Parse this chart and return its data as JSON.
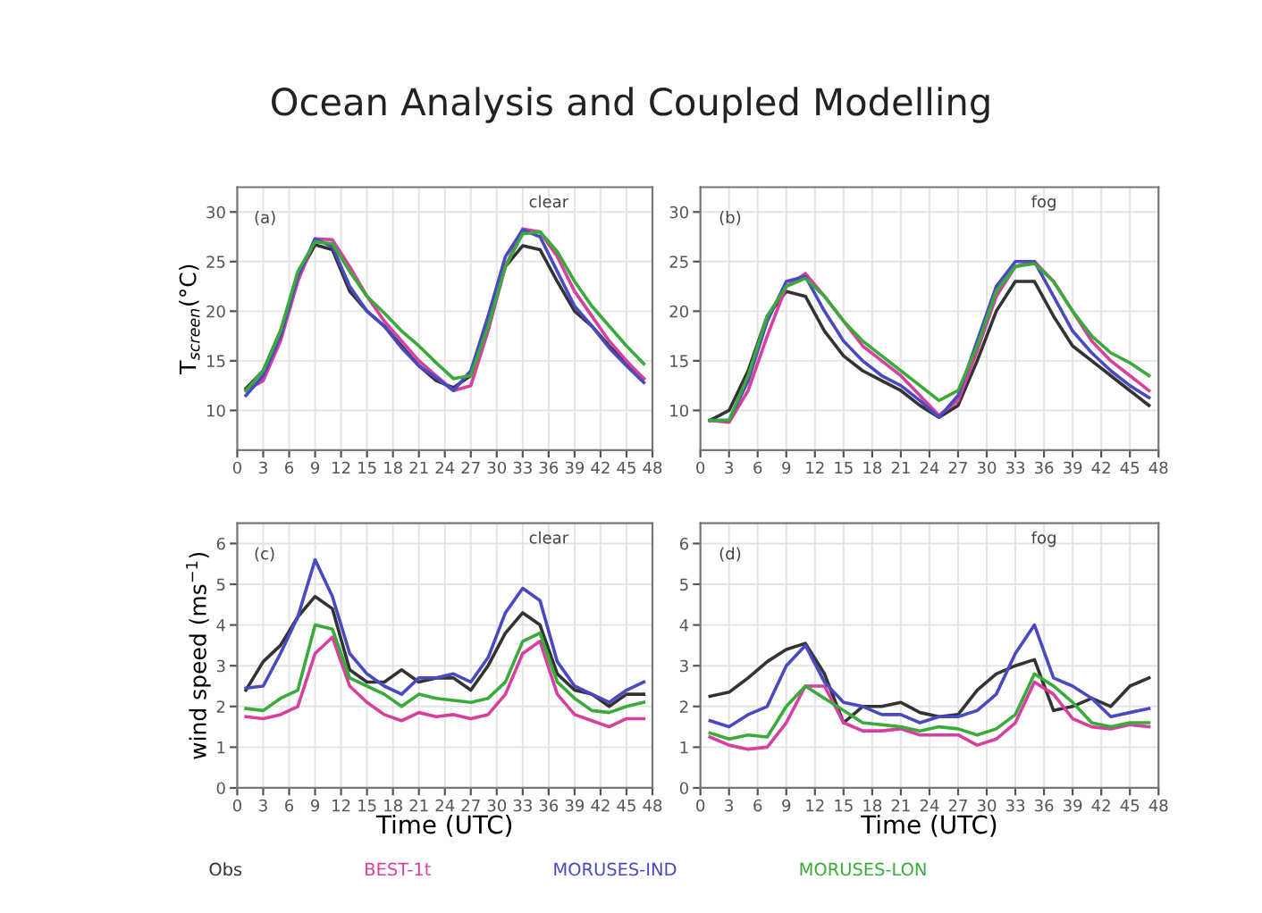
{
  "chart_data": [
    {
      "type": "line",
      "title": "Ocean Analysis and Coupled Modelling",
      "ylabel": "T$_{screen}$(°C)",
      "annotations": [
        "(a)",
        "clear"
      ],
      "x": [
        1,
        3,
        5,
        7,
        9,
        11,
        13,
        15,
        17,
        19,
        21,
        23,
        25,
        27,
        29,
        31,
        33,
        35,
        37,
        39,
        41,
        43,
        45,
        47
      ],
      "xlim": [
        0,
        48
      ],
      "xticks": [
        0,
        3,
        6,
        9,
        12,
        15,
        18,
        21,
        24,
        27,
        30,
        33,
        36,
        39,
        42,
        45,
        48
      ],
      "ylim": [
        6,
        32.5
      ],
      "yticks": [
        10,
        15,
        20,
        25,
        30
      ],
      "grid": true,
      "legend": "bottom",
      "series": [
        {
          "name": "Obs",
          "color": "#333333",
          "values": [
            12.2,
            14,
            18,
            23.5,
            26.7,
            26.2,
            22,
            20,
            18.5,
            16.5,
            14.5,
            13,
            12.3,
            13.5,
            19,
            24.5,
            26.6,
            26.2,
            23,
            20,
            18.5,
            16.5,
            14.8,
            13.2
          ]
        },
        {
          "name": "BEST-1t",
          "color": "#d6409f",
          "values": [
            12,
            13,
            17,
            23,
            27.3,
            27.2,
            24.5,
            21.5,
            19,
            17,
            15,
            13.5,
            12,
            12.5,
            18,
            24.5,
            28.3,
            28,
            25.5,
            22,
            19.5,
            17,
            15,
            13.2
          ]
        },
        {
          "name": "MORUSES-IND",
          "color": "#4a4ac0",
          "values": [
            11.5,
            13.5,
            17.5,
            23.5,
            27.3,
            26.5,
            22.5,
            20,
            18.5,
            16.3,
            14.5,
            13.3,
            12,
            14,
            19.5,
            25.5,
            28.2,
            27.5,
            24,
            20.5,
            18.5,
            16.3,
            14.5,
            12.8
          ]
        },
        {
          "name": "MORUSES-LON",
          "color": "#3aaa3a",
          "values": [
            12,
            14,
            18,
            24,
            27,
            26.8,
            24,
            21.5,
            19.8,
            18,
            16.5,
            14.8,
            13.2,
            13.5,
            18.5,
            24.5,
            27.8,
            28,
            26,
            23,
            20.5,
            18.5,
            16.5,
            14.7
          ]
        }
      ]
    },
    {
      "type": "line",
      "annotations": [
        "(b)",
        "fog"
      ],
      "x": [
        1,
        3,
        5,
        7,
        9,
        11,
        13,
        15,
        17,
        19,
        21,
        23,
        25,
        27,
        29,
        31,
        33,
        35,
        37,
        39,
        41,
        43,
        45,
        47
      ],
      "xlim": [
        0,
        48
      ],
      "xticks": [
        0,
        3,
        6,
        9,
        12,
        15,
        18,
        21,
        24,
        27,
        30,
        33,
        36,
        39,
        42,
        45,
        48
      ],
      "ylim": [
        6,
        32.5
      ],
      "yticks": [
        10,
        15,
        20,
        25,
        30
      ],
      "grid": true,
      "series": [
        {
          "color": "#333333",
          "values": [
            9,
            10,
            14,
            19.5,
            22,
            21.5,
            18,
            15.5,
            14,
            13,
            12,
            10.5,
            9.3,
            10.5,
            15,
            20,
            23,
            23,
            19.5,
            16.5,
            15,
            13.5,
            12,
            10.5
          ]
        },
        {
          "color": "#d6409f",
          "values": [
            9,
            8.8,
            12,
            17.5,
            22.5,
            23.8,
            21.5,
            19,
            16.5,
            15,
            13.5,
            11.5,
            9.5,
            11,
            16,
            21.5,
            24.5,
            25,
            23,
            20,
            17,
            15,
            13.5,
            12
          ]
        },
        {
          "color": "#4a4ac0",
          "values": [
            9,
            9,
            13,
            19,
            23,
            23.5,
            20,
            17,
            15,
            13.5,
            12.5,
            11,
            9.3,
            11.5,
            17,
            22.5,
            25,
            25,
            21.5,
            18,
            15.8,
            14,
            12.5,
            11.3
          ]
        },
        {
          "color": "#3aaa3a",
          "values": [
            9,
            9,
            13.5,
            19.5,
            22.5,
            23.3,
            21.5,
            19,
            17,
            15.5,
            14,
            12.5,
            11,
            12,
            16.5,
            22,
            24.5,
            24.8,
            23,
            20,
            17.5,
            15.8,
            14.8,
            13.5
          ]
        }
      ]
    },
    {
      "type": "line",
      "ylabel": "wind speed (ms$^{−1}$)",
      "xlabel": "Time (UTC)",
      "annotations": [
        "(c)",
        "clear"
      ],
      "x": [
        1,
        3,
        5,
        7,
        9,
        11,
        13,
        15,
        17,
        19,
        21,
        23,
        25,
        27,
        29,
        31,
        33,
        35,
        37,
        39,
        41,
        43,
        45,
        47
      ],
      "xlim": [
        0,
        48
      ],
      "xticks": [
        0,
        3,
        6,
        9,
        12,
        15,
        18,
        21,
        24,
        27,
        30,
        33,
        36,
        39,
        42,
        45,
        48
      ],
      "ylim": [
        0,
        6.5
      ],
      "yticks": [
        0,
        1,
        2,
        3,
        4,
        5,
        6
      ],
      "grid": true,
      "series": [
        {
          "color": "#333333",
          "values": [
            2.4,
            3.1,
            3.5,
            4.2,
            4.7,
            4.4,
            2.9,
            2.6,
            2.6,
            2.9,
            2.6,
            2.7,
            2.7,
            2.4,
            3.0,
            3.8,
            4.3,
            4.0,
            2.8,
            2.4,
            2.3,
            2.0,
            2.3,
            2.3
          ]
        },
        {
          "color": "#d6409f",
          "values": [
            1.75,
            1.7,
            1.8,
            2.0,
            3.3,
            3.7,
            2.5,
            2.1,
            1.8,
            1.65,
            1.85,
            1.75,
            1.8,
            1.7,
            1.8,
            2.3,
            3.3,
            3.6,
            2.3,
            1.8,
            1.65,
            1.5,
            1.7,
            1.7
          ]
        },
        {
          "color": "#4a4ac0",
          "values": [
            2.45,
            2.5,
            3.3,
            4.2,
            5.6,
            4.7,
            3.3,
            2.8,
            2.5,
            2.3,
            2.7,
            2.7,
            2.8,
            2.6,
            3.2,
            4.3,
            4.9,
            4.6,
            3.1,
            2.5,
            2.3,
            2.1,
            2.4,
            2.6
          ]
        },
        {
          "color": "#3aaa3a",
          "values": [
            1.95,
            1.9,
            2.2,
            2.4,
            4.0,
            3.9,
            2.7,
            2.5,
            2.3,
            2.0,
            2.3,
            2.2,
            2.15,
            2.1,
            2.2,
            2.6,
            3.6,
            3.8,
            2.6,
            2.2,
            1.9,
            1.85,
            2.0,
            2.1
          ]
        }
      ]
    },
    {
      "type": "line",
      "xlabel": "Time (UTC)",
      "annotations": [
        "(d)",
        "fog"
      ],
      "x": [
        1,
        3,
        5,
        7,
        9,
        11,
        13,
        15,
        17,
        19,
        21,
        23,
        25,
        27,
        29,
        31,
        33,
        35,
        37,
        39,
        41,
        43,
        45,
        47
      ],
      "xlim": [
        0,
        48
      ],
      "xticks": [
        0,
        3,
        6,
        9,
        12,
        15,
        18,
        21,
        24,
        27,
        30,
        33,
        36,
        39,
        42,
        45,
        48
      ],
      "ylim": [
        0,
        6.5
      ],
      "yticks": [
        0,
        1,
        2,
        3,
        4,
        5,
        6
      ],
      "grid": true,
      "series": [
        {
          "color": "#333333",
          "values": [
            2.25,
            2.35,
            2.7,
            3.1,
            3.4,
            3.55,
            2.8,
            1.6,
            2.0,
            2.0,
            2.1,
            1.85,
            1.75,
            1.8,
            2.4,
            2.8,
            3.0,
            3.15,
            1.9,
            2.0,
            2.2,
            2.0,
            2.5,
            2.7
          ]
        },
        {
          "color": "#d6409f",
          "values": [
            1.25,
            1.05,
            0.95,
            1.0,
            1.6,
            2.5,
            2.5,
            1.6,
            1.4,
            1.4,
            1.45,
            1.3,
            1.3,
            1.3,
            1.05,
            1.2,
            1.6,
            2.6,
            2.3,
            1.7,
            1.5,
            1.45,
            1.55,
            1.5
          ]
        },
        {
          "color": "#4a4ac0",
          "values": [
            1.65,
            1.5,
            1.8,
            2.0,
            3.0,
            3.5,
            2.6,
            2.1,
            2.0,
            1.8,
            1.8,
            1.6,
            1.75,
            1.75,
            1.9,
            2.3,
            3.3,
            4.0,
            2.7,
            2.5,
            2.2,
            1.75,
            1.85,
            1.95
          ]
        },
        {
          "color": "#3aaa3a",
          "values": [
            1.35,
            1.2,
            1.3,
            1.25,
            2.0,
            2.5,
            2.2,
            1.9,
            1.6,
            1.55,
            1.5,
            1.4,
            1.5,
            1.45,
            1.3,
            1.45,
            1.8,
            2.8,
            2.5,
            2.1,
            1.6,
            1.5,
            1.6,
            1.6
          ]
        }
      ]
    }
  ]
}
